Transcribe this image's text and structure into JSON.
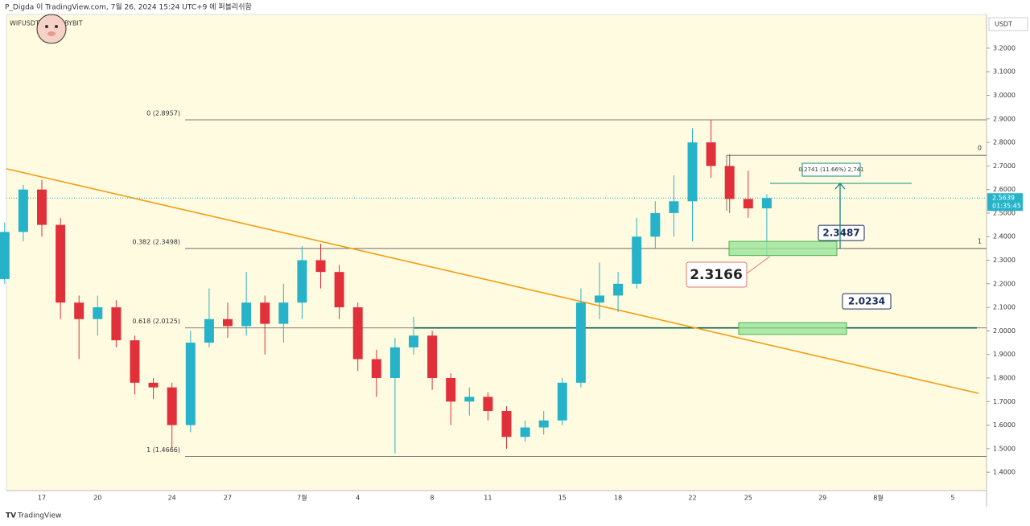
{
  "chart_data": {
    "type": "candlestick",
    "header": "P_Digda 이 TradingView.com, 7월 26, 2024 15:24 UTC+9 에 퍼블리쉬함",
    "symbol": "WIFUSDT",
    "exchange": "BYBIT",
    "currency": "USDT",
    "brand": "TradingView",
    "up_color": "#26b3c9",
    "down_color": "#e0313b",
    "categories": [
      null,
      null,
      "17",
      null,
      null,
      "20",
      null,
      null,
      null,
      "24",
      null,
      null,
      "27",
      null,
      null,
      null,
      "7월",
      null,
      null,
      "4",
      null,
      null,
      null,
      "8",
      null,
      null,
      "11",
      null,
      null,
      null,
      "15",
      null,
      null,
      "18",
      null,
      null,
      null,
      "22",
      null,
      null,
      "25",
      null,
      null,
      null,
      "29",
      null,
      null,
      "8월",
      null,
      null,
      null,
      "5",
      null
    ],
    "open": [
      2.22,
      2.42,
      2.6,
      2.45,
      2.12,
      2.05,
      2.1,
      1.96,
      1.78,
      1.76,
      1.6,
      1.95,
      2.05,
      2.02,
      2.12,
      2.03,
      2.12,
      2.3,
      2.25,
      2.1,
      1.88,
      1.8,
      1.93,
      1.98,
      1.8,
      1.7,
      1.72,
      1.66,
      1.55,
      1.59,
      1.62,
      1.78,
      2.12,
      2.15,
      2.2,
      2.4,
      2.5,
      2.55,
      2.8,
      2.7,
      2.56,
      2.52,
      null,
      null,
      null,
      null,
      null,
      null,
      null,
      null,
      null,
      null,
      null
    ],
    "high": [
      2.46,
      2.62,
      2.64,
      2.48,
      2.15,
      2.15,
      2.13,
      1.98,
      1.8,
      1.78,
      2.0,
      2.18,
      2.12,
      2.25,
      2.15,
      2.2,
      2.36,
      2.37,
      2.28,
      2.12,
      1.92,
      1.97,
      2.06,
      2.0,
      1.82,
      1.76,
      1.74,
      1.68,
      1.62,
      1.66,
      1.8,
      2.18,
      2.29,
      2.25,
      2.48,
      2.55,
      2.66,
      2.86,
      2.8957,
      2.75,
      2.68,
      2.58,
      null,
      null,
      null,
      null,
      null,
      null,
      null,
      null,
      null,
      null,
      null
    ],
    "low": [
      2.2,
      2.38,
      2.4,
      2.05,
      1.88,
      1.98,
      1.93,
      1.73,
      1.71,
      1.5,
      1.57,
      1.93,
      1.97,
      1.98,
      1.9,
      1.95,
      2.05,
      2.18,
      2.05,
      1.83,
      1.72,
      1.48,
      1.9,
      1.75,
      1.6,
      1.64,
      1.62,
      1.5,
      1.53,
      1.56,
      1.6,
      1.76,
      2.05,
      2.08,
      2.18,
      2.35,
      2.4,
      2.38,
      2.65,
      2.5,
      2.48,
      2.3166,
      null,
      null,
      null,
      null,
      null,
      null,
      null,
      null,
      null,
      null,
      null
    ],
    "close": [
      2.42,
      2.6,
      2.45,
      2.12,
      2.05,
      2.1,
      1.96,
      1.78,
      1.76,
      1.6,
      1.95,
      2.05,
      2.02,
      2.12,
      2.03,
      2.12,
      2.3,
      2.25,
      2.1,
      1.88,
      1.8,
      1.93,
      1.98,
      1.8,
      1.7,
      1.72,
      1.66,
      1.55,
      1.59,
      1.62,
      1.78,
      2.12,
      2.15,
      2.2,
      2.4,
      2.5,
      2.55,
      2.8,
      2.7,
      2.56,
      2.52,
      2.5639,
      null,
      null,
      null,
      null,
      null,
      null,
      null,
      null,
      null,
      null,
      null
    ],
    "ylim": [
      1.322,
      3.343
    ],
    "yticks": [
      {
        "value": 1.4,
        "label": "1.4000"
      },
      {
        "value": 1.5,
        "label": "1.5000"
      },
      {
        "value": 1.6,
        "label": "1.6000"
      },
      {
        "value": 1.7,
        "label": "1.7000"
      },
      {
        "value": 1.8,
        "label": "1.8000"
      },
      {
        "value": 1.9,
        "label": "1.9000"
      },
      {
        "value": 2.0,
        "label": "2.0000"
      },
      {
        "value": 2.1,
        "label": "2.1000"
      },
      {
        "value": 2.2,
        "label": "2.2000"
      },
      {
        "value": 2.3,
        "label": "2.3000"
      },
      {
        "value": 2.4,
        "label": "2.4000"
      },
      {
        "value": 2.5,
        "label": "2.5000"
      },
      {
        "value": 2.6,
        "label": "2.6000"
      },
      {
        "value": 2.7,
        "label": "2.7000"
      },
      {
        "value": 2.8,
        "label": "2.8000"
      },
      {
        "value": 2.9,
        "label": "2.9000"
      },
      {
        "value": 3.0,
        "label": "3.0000"
      },
      {
        "value": 3.1,
        "label": "3.1000"
      },
      {
        "value": 3.2,
        "label": "3.2000"
      }
    ],
    "last_price": 2.5639,
    "countdown": "01:35:45",
    "fib": {
      "labels": [
        "0 (2.8957)",
        "0.382 (2.3498)",
        "0.618 (2.0125)",
        "1 (1.4666)"
      ],
      "prices": [
        2.8957,
        2.3498,
        2.0125,
        1.4666
      ]
    },
    "fib2": {
      "labels": [
        "0",
        "1"
      ],
      "prices": [
        2.745,
        2.3498
      ]
    },
    "trendline": [
      2.688,
      1.735
    ],
    "zones": [
      {
        "label": "2.3487",
        "range": [
          2.38,
          2.32
        ]
      },
      {
        "label": "2.0234",
        "range": [
          2.035,
          1.985
        ]
      }
    ],
    "low_label": "2.3166",
    "measure": {
      "label": "0.2741 (11.66%) 2,741",
      "from": 2.35,
      "to": 2.626
    }
  }
}
